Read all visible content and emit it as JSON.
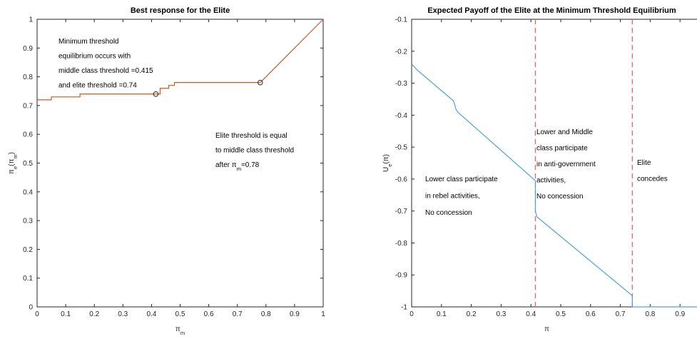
{
  "chart_data": [
    {
      "id": "best-response",
      "type": "line",
      "title": "Best response for the Elite",
      "xlabel": "π_m",
      "ylabel": "π_e(π_m)",
      "xlim": [
        0,
        1
      ],
      "ylim": [
        0,
        1
      ],
      "xticks": [
        0,
        0.1,
        0.2,
        0.3,
        0.4,
        0.5,
        0.6,
        0.7,
        0.8,
        0.9,
        1
      ],
      "xtick_labels": [
        "0",
        "0.1",
        "0.2",
        "0.3",
        "0.4",
        "0.5",
        "0.6",
        "0.7",
        "0.8",
        "0.9",
        "1"
      ],
      "yticks": [
        0,
        0.1,
        0.2,
        0.3,
        0.4,
        0.5,
        0.6,
        0.7,
        0.8,
        0.9,
        1
      ],
      "ytick_labels": [
        "0",
        "0.1",
        "0.2",
        "0.3",
        "0.4",
        "0.5",
        "0.6",
        "0.7",
        "0.8",
        "0.9",
        "1"
      ],
      "grid": false,
      "series": [
        {
          "color": "#D95319",
          "x": [
            0,
            0.05,
            0.05,
            0.15,
            0.15,
            0.415,
            0.415,
            0.43,
            0.43,
            0.46,
            0.46,
            0.48,
            0.48,
            0.78,
            1.0
          ],
          "y": [
            0.72,
            0.72,
            0.73,
            0.73,
            0.74,
            0.74,
            0.74,
            0.74,
            0.76,
            0.76,
            0.77,
            0.77,
            0.78,
            0.78,
            1.0
          ]
        }
      ],
      "markers": [
        {
          "x": 0.415,
          "y": 0.74
        },
        {
          "x": 0.78,
          "y": 0.78
        }
      ],
      "annotations": [
        {
          "lines": [
            "Minimum threshold",
            "equilibrium occurs with",
            "middle class threshold =0.415",
            "and elite threshold =0.74"
          ]
        },
        {
          "lines": [
            "Elite threshold is equal",
            "to middle class threshold",
            "after π_m=0.78"
          ]
        }
      ]
    },
    {
      "id": "expected-payoff",
      "type": "line",
      "title": "Expected Payoff of the Elite at the Minimum Threshold Equilibrium",
      "xlabel": "π",
      "ylabel": "U_e(π)",
      "xlim": [
        0,
        1
      ],
      "ylim": [
        -1,
        -0.1
      ],
      "xticks": [
        0,
        0.1,
        0.2,
        0.3,
        0.4,
        0.5,
        0.6,
        0.7,
        0.8,
        0.9
      ],
      "xtick_labels": [
        "0",
        "0.1",
        "0.2",
        "0.3",
        "0.4",
        "0.5",
        "0.6",
        "0.7",
        "0.8",
        "0.9"
      ],
      "yticks": [
        -0.1,
        -0.2,
        -0.3,
        -0.4,
        -0.5,
        -0.6,
        -0.7,
        -0.8,
        -0.9,
        -1
      ],
      "ytick_labels": [
        "-0.1",
        "-0.2",
        "-0.3",
        "-0.4",
        "-0.5",
        "-0.6",
        "-0.7",
        "-0.8",
        "-0.9",
        "-1"
      ],
      "grid": false,
      "series": [
        {
          "color": "#4DA3D9",
          "x": [
            0,
            0.02,
            0.14,
            0.15,
            0.16,
            0.415,
            0.415,
            0.42,
            0.74,
            0.74,
            1.0
          ],
          "y": [
            -0.24,
            -0.26,
            -0.355,
            -0.385,
            -0.395,
            -0.605,
            -0.7,
            -0.718,
            -0.965,
            -1.0,
            -1.0
          ]
        }
      ],
      "vlines": [
        {
          "x": 0.415,
          "color": "#E8646A"
        },
        {
          "x": 0.74,
          "color": "#E8646A"
        }
      ],
      "annotations": [
        {
          "lines": [
            "Lower class participate",
            "in rebel activities,",
            "No concession"
          ]
        },
        {
          "lines": [
            "Lower and Middle",
            "class participate",
            "in anti-government",
            "activities,",
            "No concession"
          ]
        },
        {
          "lines": [
            "Elite",
            "concedes"
          ]
        }
      ]
    }
  ]
}
